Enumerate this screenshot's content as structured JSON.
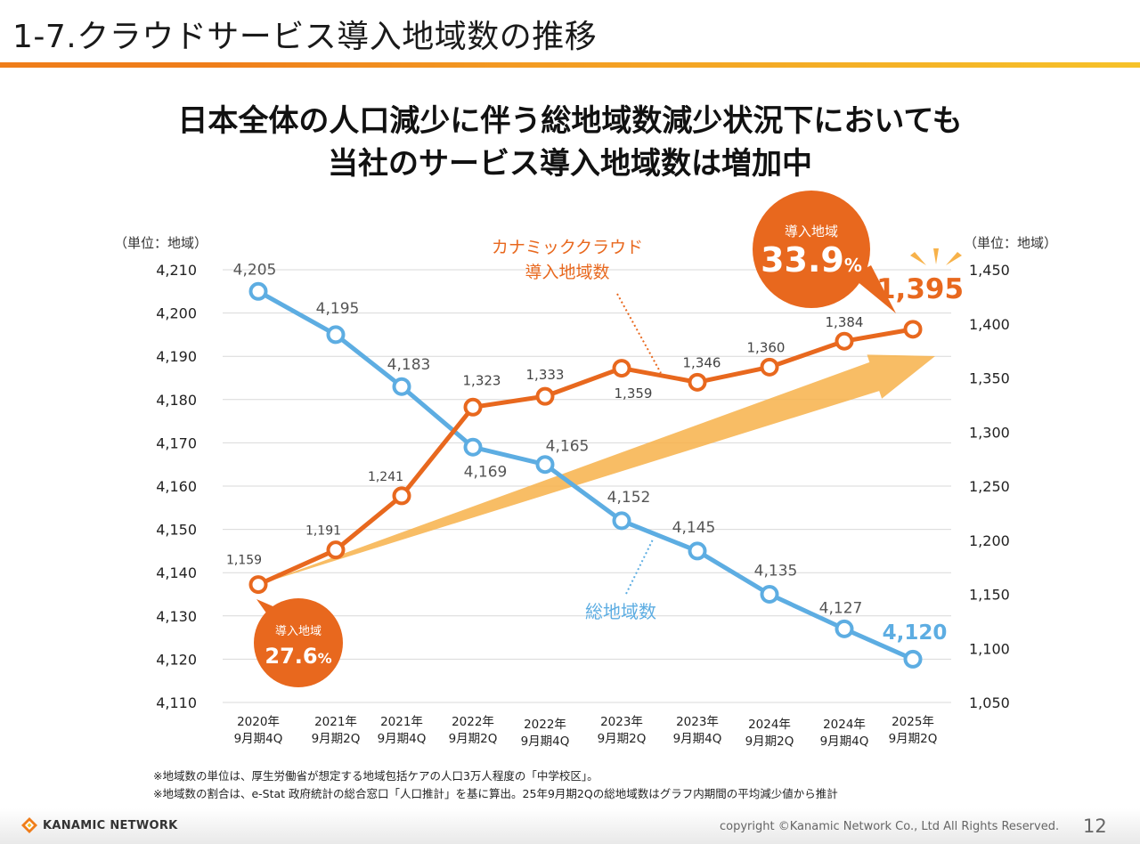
{
  "slide": {
    "title": "1-7.クラウドサービス導入地域数の推移",
    "headline_line1": "日本全体の人口減少に伴う総地域数減少状況下においても",
    "headline_line2": "当社のサービス導入地域数は増加中",
    "unit_left": "（単位：地域）",
    "unit_right": "（単位：地域）"
  },
  "colors": {
    "orange": "#E8681E",
    "blue": "#5DADE2",
    "arrow": "#F7B24A",
    "title_rule_orange": "#EF7D1A",
    "title_rule_yellow": "#F6C229",
    "grid": "#D9D9D9"
  },
  "chart_data": {
    "type": "line",
    "categories": [
      "2020年 9月期4Q",
      "2021年 9月期2Q",
      "2021年 9月期4Q",
      "2022年 9月期2Q",
      "2022年 9月期4Q",
      "2023年 9月期2Q",
      "2023年 9月期4Q",
      "2024年 9月期2Q",
      "2024年 9月期4Q",
      "2025年 9月期2Q"
    ],
    "category_lines": [
      [
        "2020年",
        "9月期4Q"
      ],
      [
        "2021年",
        "9月期2Q"
      ],
      [
        "2021年",
        "9月期4Q"
      ],
      [
        "2022年",
        "9月期2Q"
      ],
      [
        "2022年",
        "9月期4Q"
      ],
      [
        "2023年",
        "9月期2Q"
      ],
      [
        "2023年",
        "9月期4Q"
      ],
      [
        "2024年",
        "9月期2Q"
      ],
      [
        "2024年",
        "9月期4Q"
      ],
      [
        "2025年",
        "9月期2Q"
      ]
    ],
    "series": [
      {
        "name": "カナミッククラウド導入地域数",
        "axis": "right",
        "values": [
          1159,
          1191,
          1241,
          1323,
          1333,
          1359,
          1346,
          1360,
          1384,
          1395
        ],
        "labels": [
          "1,159",
          "1,191",
          "1,241",
          "1,323",
          "1,333",
          "1,359",
          "1,346",
          "1,360",
          "1,384",
          "1,395"
        ]
      },
      {
        "name": "総地域数",
        "axis": "left",
        "values": [
          4205,
          4195,
          4183,
          4169,
          4165,
          4152,
          4145,
          4135,
          4127,
          4120
        ],
        "labels": [
          "4,205",
          "4,195",
          "4,183",
          "4,169",
          "4,165",
          "4,152",
          "4,145",
          "4,135",
          "4,127",
          "4,120"
        ]
      }
    ],
    "y_left": {
      "min": 4110,
      "max": 4210,
      "ticks": [
        "4,210",
        "4,200",
        "4,190",
        "4,180",
        "4,170",
        "4,160",
        "4,150",
        "4,140",
        "4,130",
        "4,120",
        "4,110"
      ]
    },
    "y_right": {
      "min": 1050,
      "max": 1450,
      "ticks": [
        "1,450",
        "1,400",
        "1,350",
        "1,300",
        "1,250",
        "1,200",
        "1,150",
        "1,100",
        "1,050"
      ]
    },
    "series_label_orange_line1": "カナミッククラウド",
    "series_label_orange_line2": "導入地域数",
    "series_label_blue": "総地域数",
    "callout_start": {
      "caption": "導入地域",
      "value": "27.6",
      "unit": "%"
    },
    "callout_end": {
      "caption": "導入地域",
      "value": "33.9",
      "unit": "%"
    },
    "grid": true
  },
  "notes": {
    "line1": "※地域数の単位は、厚生労働省が想定する地域包括ケアの人口3万人程度の「中学校区」。",
    "line2": "※地域数の割合は、e-Stat 政府統計の総合窓口「人口推計」を基に算出。25年9月期2Qの総地域数はグラフ内期間の平均減少値から推計"
  },
  "footer": {
    "logo_text": "KANAMIC NETWORK",
    "copyright": "copyright ©Kanamic Network Co., Ltd All Rights Reserved.",
    "page_number": "12"
  }
}
